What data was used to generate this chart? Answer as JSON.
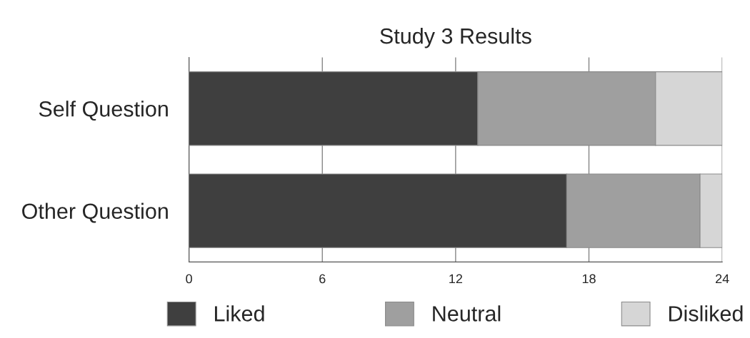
{
  "chart_data": {
    "type": "bar",
    "title": "Study 3 Results",
    "orientation": "horizontal",
    "stacked": true,
    "categories": [
      "Self Question",
      "Other Question"
    ],
    "series": [
      {
        "name": "Liked",
        "color": "#3f3f3f",
        "values": [
          13,
          17
        ]
      },
      {
        "name": "Neutral",
        "color": "#9f9f9f",
        "values": [
          8,
          6
        ]
      },
      {
        "name": "Disliked",
        "color": "#d6d6d6",
        "values": [
          3,
          1
        ]
      }
    ],
    "xlim": [
      0,
      24
    ],
    "xticks": [
      0,
      6,
      12,
      18,
      24
    ],
    "grid": "x",
    "legend": "bottom"
  }
}
